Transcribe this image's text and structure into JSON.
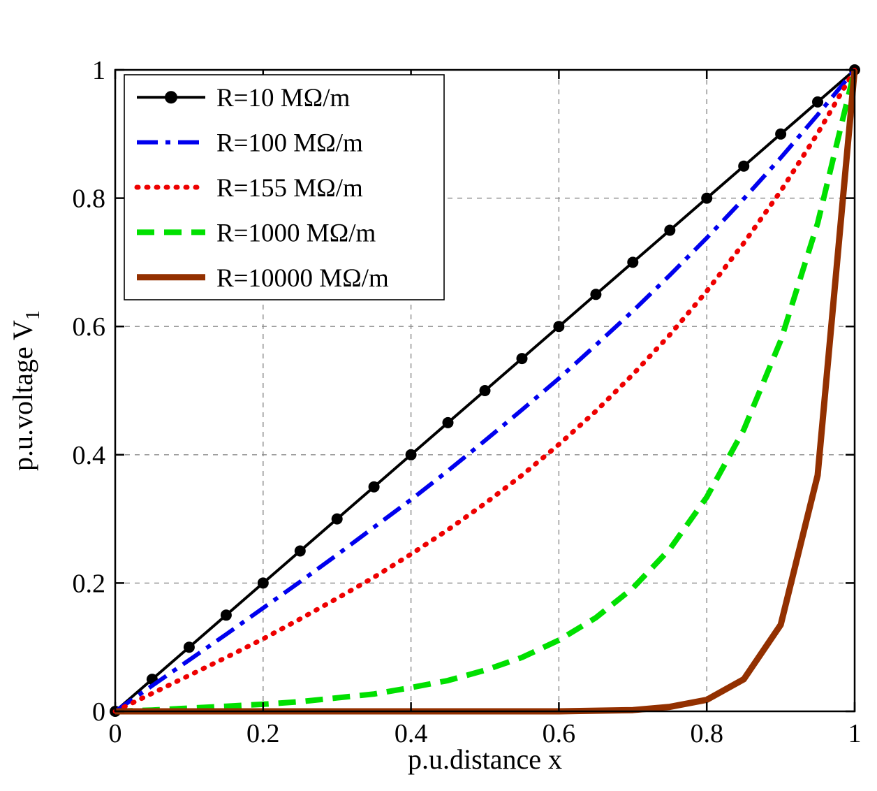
{
  "figure": {
    "background": "#ffffff"
  },
  "chart_data": {
    "type": "line",
    "title": "",
    "xlabel": "p.u.distance x",
    "ylabel": "p.u.voltage V",
    "ylabel_subscript": "1",
    "xlim": [
      0,
      1
    ],
    "ylim": [
      0,
      1
    ],
    "xticks": [
      0,
      0.2,
      0.4,
      0.6,
      0.8,
      1
    ],
    "yticks": [
      0,
      0.2,
      0.4,
      0.6,
      0.8,
      1
    ],
    "xtick_labels": [
      "0",
      "0.2",
      "0.4",
      "0.6",
      "0.8",
      "1"
    ],
    "ytick_labels": [
      "0",
      "0.2",
      "0.4",
      "0.6",
      "0.8",
      "1"
    ],
    "grid": true,
    "grid_style": "dashed",
    "legend_position": "top-left",
    "x": [
      0,
      0.05,
      0.1,
      0.15,
      0.2,
      0.25,
      0.3,
      0.35,
      0.4,
      0.45,
      0.5,
      0.55,
      0.6,
      0.65,
      0.7,
      0.75,
      0.8,
      0.85,
      0.9,
      0.95,
      1
    ],
    "series": [
      {
        "name": "R=10 MΩ/m",
        "color": "#000000",
        "style": "solid",
        "marker": "circle",
        "width": 4,
        "values": [
          0,
          0.05,
          0.1,
          0.15,
          0.2,
          0.25,
          0.3,
          0.35,
          0.4,
          0.45,
          0.5,
          0.55,
          0.6,
          0.65,
          0.7,
          0.75,
          0.8,
          0.85,
          0.9,
          0.95,
          1
        ]
      },
      {
        "name": "R=100 MΩ/m",
        "color": "#0000ee",
        "style": "dashdot",
        "marker": "none",
        "width": 6,
        "values": [
          0,
          0.04,
          0.08,
          0.12,
          0.161,
          0.202,
          0.244,
          0.287,
          0.33,
          0.375,
          0.422,
          0.47,
          0.519,
          0.571,
          0.624,
          0.68,
          0.738,
          0.799,
          0.863,
          0.93,
          1
        ]
      },
      {
        "name": "R=155 MΩ/m",
        "color": "#ee0000",
        "style": "dotted",
        "marker": "none",
        "width": 7,
        "values": [
          0,
          0.028,
          0.056,
          0.084,
          0.113,
          0.144,
          0.176,
          0.209,
          0.245,
          0.283,
          0.324,
          0.368,
          0.416,
          0.468,
          0.525,
          0.587,
          0.655,
          0.73,
          0.811,
          0.901,
          1
        ]
      },
      {
        "name": "R=1000 MΩ/m",
        "color": "#00e000",
        "style": "dashed",
        "marker": "none",
        "width": 8,
        "values": [
          0,
          0.002,
          0.005,
          0.008,
          0.011,
          0.015,
          0.021,
          0.027,
          0.037,
          0.048,
          0.064,
          0.084,
          0.111,
          0.146,
          0.192,
          0.253,
          0.334,
          0.439,
          0.578,
          0.761,
          1
        ]
      },
      {
        "name": "R=10000 MΩ/m",
        "color": "#933000",
        "style": "solid",
        "marker": "none",
        "width": 9,
        "values": [
          0,
          0,
          0,
          0,
          0,
          0,
          0,
          0,
          0,
          0,
          0,
          0,
          0,
          0.001,
          0.002,
          0.007,
          0.018,
          0.05,
          0.135,
          0.368,
          1
        ]
      }
    ]
  }
}
